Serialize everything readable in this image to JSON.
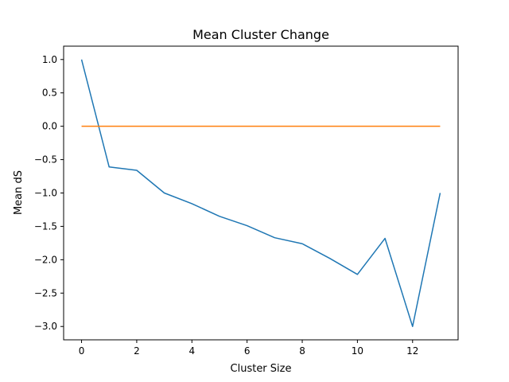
{
  "chart_data": {
    "type": "line",
    "title": "Mean Cluster Change",
    "xlabel": "Cluster Size",
    "ylabel": "Mean dS",
    "xlim": [
      -0.65,
      13.65
    ],
    "ylim": [
      -3.2,
      1.2
    ],
    "x_ticks": [
      0,
      2,
      4,
      6,
      8,
      10,
      12
    ],
    "x_tick_labels": [
      "0",
      "2",
      "4",
      "6",
      "8",
      "10",
      "12"
    ],
    "y_ticks": [
      1.0,
      0.5,
      0.0,
      -0.5,
      -1.0,
      -1.5,
      -2.0,
      -2.5,
      -3.0
    ],
    "y_tick_labels": [
      "1.0",
      "0.5",
      "0.0",
      "−0.5",
      "−1.0",
      "−1.5",
      "−2.0",
      "−2.5",
      "−3.0"
    ],
    "grid": false,
    "series": [
      {
        "color": "#1f77b4",
        "x": [
          0,
          1,
          2,
          3,
          4,
          5,
          6,
          7,
          8,
          9,
          10,
          11,
          12,
          13
        ],
        "values": [
          1.0,
          -0.61,
          -0.66,
          -1.0,
          -1.16,
          -1.35,
          -1.49,
          -1.67,
          -1.76,
          -1.98,
          -2.22,
          -1.68,
          -3.0,
          -1.0
        ]
      },
      {
        "color": "#ff7f0e",
        "x": [
          0,
          13
        ],
        "values": [
          0.0,
          0.0
        ]
      }
    ]
  }
}
